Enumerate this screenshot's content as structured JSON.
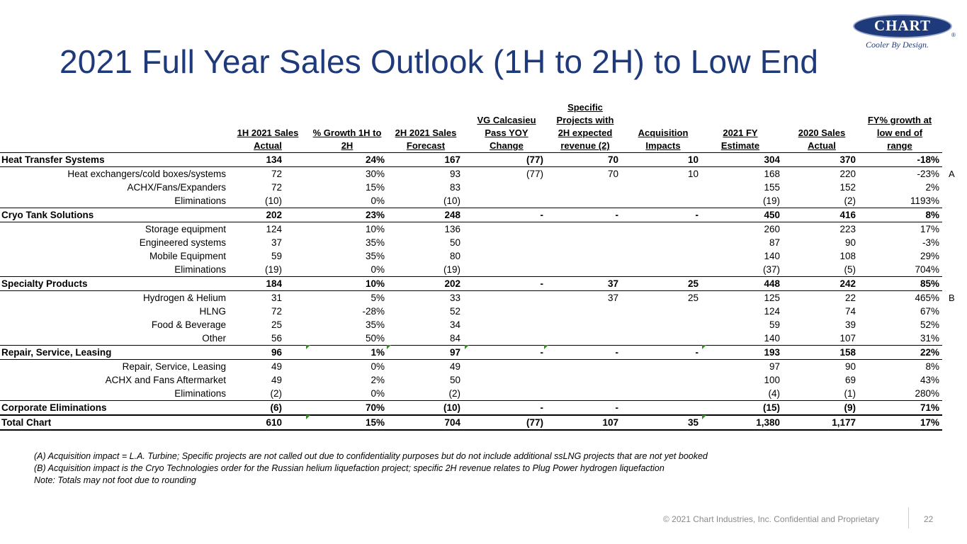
{
  "title": "2021 Full Year Sales Outlook (1H to 2H) to Low End",
  "logo": {
    "name": "CHART",
    "tagline": "Cooler By Design.",
    "reg": "®"
  },
  "headers": [
    [
      "1H 2021 Sales",
      "Actual"
    ],
    [
      "% Growth 1H to",
      "2H"
    ],
    [
      "2H 2021 Sales",
      "Forecast"
    ],
    [
      "VG Calcasieu",
      "Pass YOY",
      "Change"
    ],
    [
      "Specific",
      "Projects with",
      "2H expected",
      "revenue (2)"
    ],
    [
      "Acquisition",
      "Impacts"
    ],
    [
      "2021 FY",
      "Estimate"
    ],
    [
      "2020 Sales",
      "Actual"
    ],
    [
      "FY% growth at",
      "low end of",
      "range"
    ]
  ],
  "rows": [
    {
      "type": "sec",
      "label": "Heat Transfer Systems",
      "v": [
        "134",
        "24%",
        "167",
        "(77)",
        "70",
        "10",
        "304",
        "370",
        "-18%"
      ]
    },
    {
      "type": "item",
      "label": "Heat exchangers/cold boxes/systems",
      "v": [
        "72",
        "30%",
        "93",
        "(77)",
        "70",
        "10",
        "168",
        "220",
        "-23%"
      ],
      "side": "A"
    },
    {
      "type": "item",
      "label": "ACHX/Fans/Expanders",
      "v": [
        "72",
        "15%",
        "83",
        "",
        "",
        "",
        "155",
        "152",
        "2%"
      ]
    },
    {
      "type": "item",
      "label": "Eliminations",
      "v": [
        "(10)",
        "0%",
        "(10)",
        "",
        "",
        "",
        "(19)",
        "(2)",
        "1193%"
      ]
    },
    {
      "type": "sec",
      "label": "Cryo Tank Solutions",
      "v": [
        "202",
        "23%",
        "248",
        "-",
        "-",
        "-",
        "450",
        "416",
        "8%"
      ]
    },
    {
      "type": "item",
      "label": "Storage equipment",
      "v": [
        "124",
        "10%",
        "136",
        "",
        "",
        "",
        "260",
        "223",
        "17%"
      ]
    },
    {
      "type": "item",
      "label": "Engineered systems",
      "v": [
        "37",
        "35%",
        "50",
        "",
        "",
        "",
        "87",
        "90",
        "-3%"
      ]
    },
    {
      "type": "item",
      "label": "Mobile Equipment",
      "v": [
        "59",
        "35%",
        "80",
        "",
        "",
        "",
        "140",
        "108",
        "29%"
      ]
    },
    {
      "type": "item",
      "label": "Eliminations",
      "v": [
        "(19)",
        "0%",
        "(19)",
        "",
        "",
        "",
        "(37)",
        "(5)",
        "704%"
      ]
    },
    {
      "type": "sec",
      "label": "Specialty Products",
      "v": [
        "184",
        "10%",
        "202",
        "-",
        "37",
        "25",
        "448",
        "242",
        "85%"
      ]
    },
    {
      "type": "item",
      "label": "Hydrogen & Helium",
      "v": [
        "31",
        "5%",
        "33",
        "",
        "37",
        "25",
        "125",
        "22",
        "465%"
      ],
      "side": "B"
    },
    {
      "type": "item",
      "label": "HLNG",
      "v": [
        "72",
        "-28%",
        "52",
        "",
        "",
        "",
        "124",
        "74",
        "67%"
      ]
    },
    {
      "type": "item",
      "label": "Food & Beverage",
      "v": [
        "25",
        "35%",
        "34",
        "",
        "",
        "",
        "59",
        "39",
        "52%"
      ]
    },
    {
      "type": "item",
      "label": "Other",
      "v": [
        "56",
        "50%",
        "84",
        "",
        "",
        "",
        "140",
        "107",
        "31%"
      ]
    },
    {
      "type": "sec",
      "label": "Repair, Service, Leasing",
      "v": [
        "96",
        "1%",
        "97",
        "-",
        "-",
        "-",
        "193",
        "158",
        "22%"
      ]
    },
    {
      "type": "item",
      "label": "Repair, Service, Leasing",
      "v": [
        "49",
        "0%",
        "49",
        "",
        "",
        "",
        "97",
        "90",
        "8%"
      ]
    },
    {
      "type": "item",
      "label": "ACHX and Fans Aftermarket",
      "v": [
        "49",
        "2%",
        "50",
        "",
        "",
        "",
        "100",
        "69",
        "43%"
      ]
    },
    {
      "type": "item",
      "label": "Eliminations",
      "v": [
        "(2)",
        "0%",
        "(2)",
        "",
        "",
        "",
        "(4)",
        "(1)",
        "280%"
      ]
    },
    {
      "type": "sec",
      "label": "Corporate Eliminations",
      "v": [
        "(6)",
        "70%",
        "(10)",
        "-",
        "-",
        "",
        "(15)",
        "(9)",
        "71%"
      ]
    },
    {
      "type": "total",
      "label": "Total Chart",
      "v": [
        "610",
        "15%",
        "704",
        "(77)",
        "107",
        "35",
        "1,380",
        "1,177",
        "17%"
      ]
    }
  ],
  "notes": [
    "(A)  Acquisition impact = L.A. Turbine; Specific projects are not called out due to confidentiality purposes but do not include additional ssLNG projects that are not yet booked",
    "(B)  Acquisition impact is the Cryo Technologies order for the Russian helium liquefaction project; specific 2H revenue relates to Plug Power hydrogen liquefaction",
    "Note: Totals may not foot due to rounding"
  ],
  "footer": "© 2021 Chart Industries, Inc. Confidential and Proprietary",
  "page_number": "22"
}
